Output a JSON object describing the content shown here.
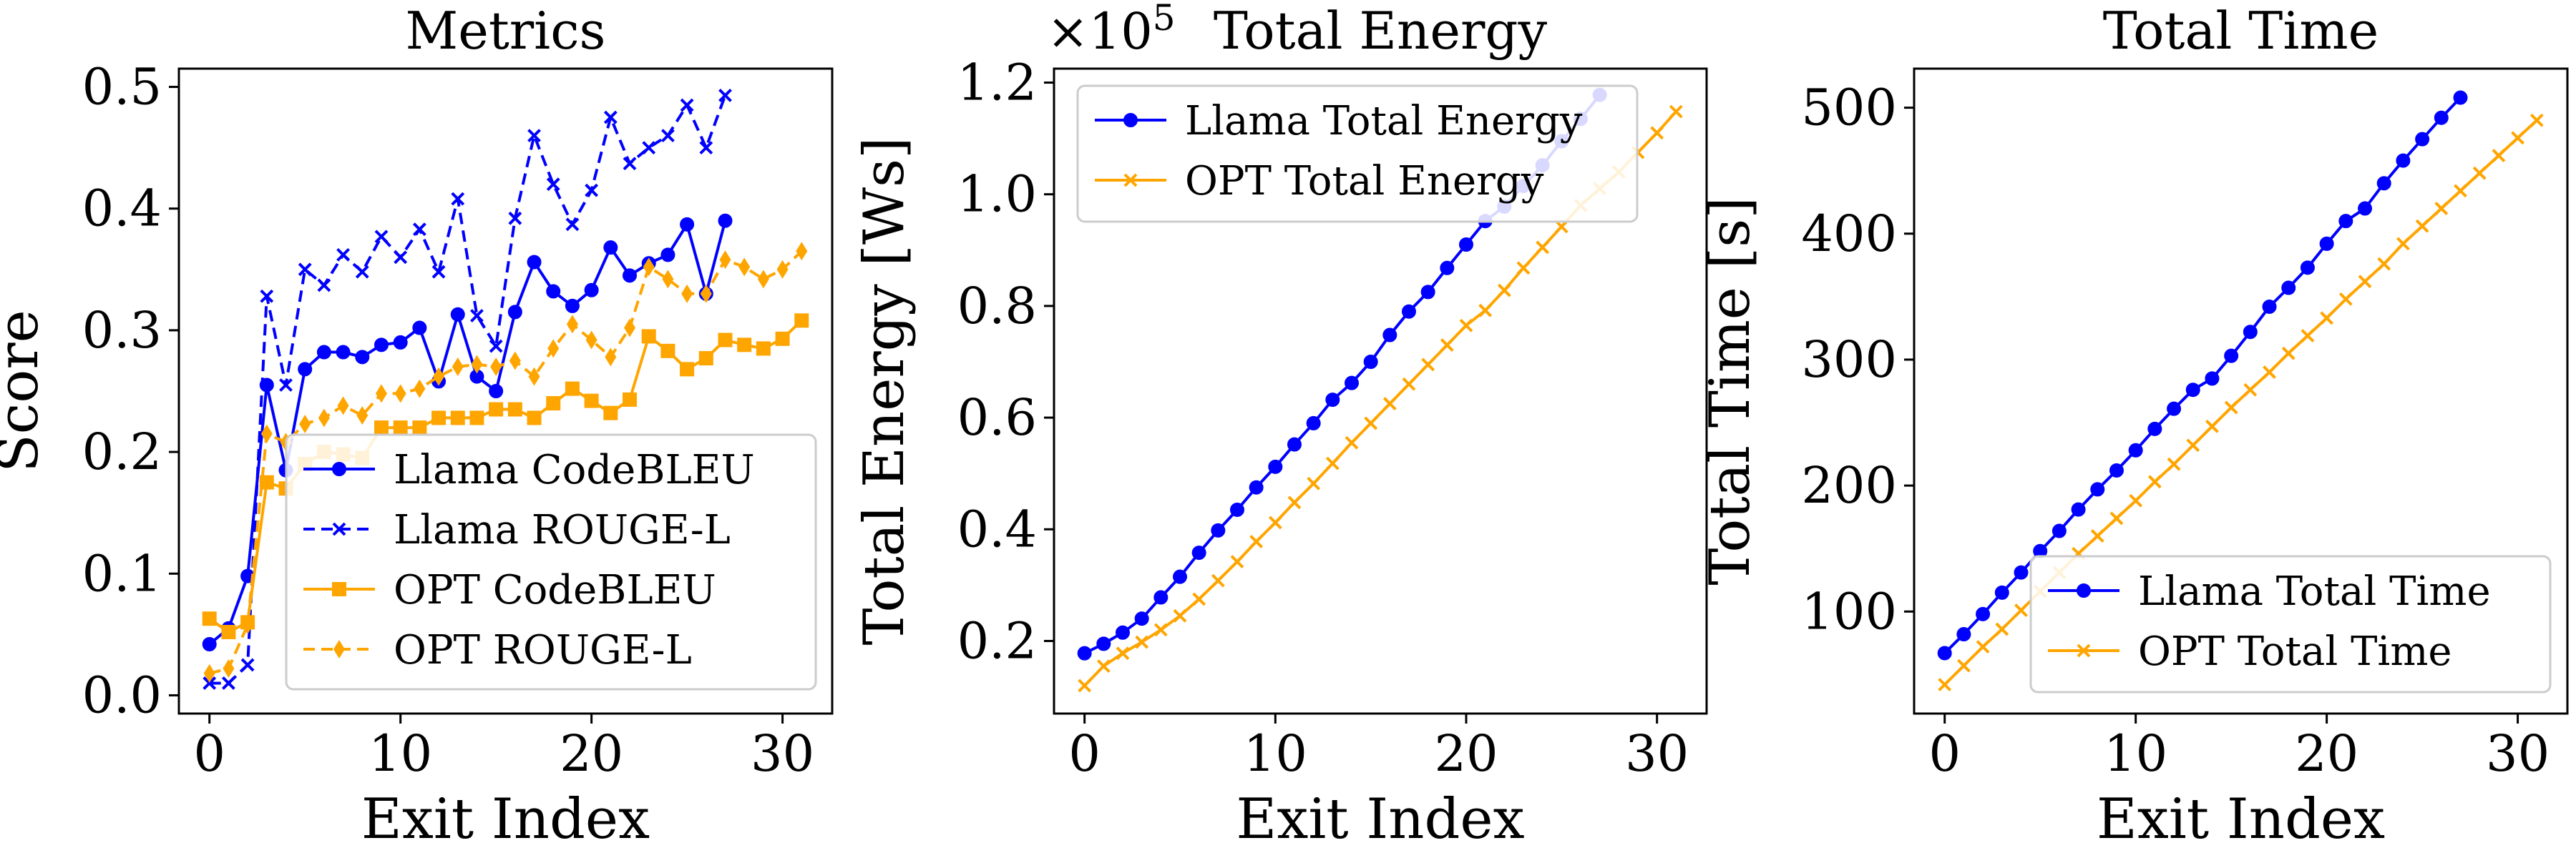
{
  "figure": {
    "background": "#ffffff"
  },
  "chart_data": [
    {
      "type": "line",
      "title": "Metrics",
      "xlabel": "Exit Index",
      "ylabel": "Score",
      "xlim": [
        -1.6,
        32.6
      ],
      "ylim": [
        -0.015,
        0.515
      ],
      "xticks": [
        0,
        10,
        20,
        30
      ],
      "xtick_labels": [
        "0",
        "10",
        "20",
        "30"
      ],
      "yticks": [
        0.0,
        0.1,
        0.2,
        0.3,
        0.4,
        0.5
      ],
      "ytick_labels": [
        "0.0",
        "0.1",
        "0.2",
        "0.3",
        "0.4",
        "0.5"
      ],
      "grid": false,
      "legend_position": "lower-right",
      "series": [
        {
          "name": "Llama CodeBLEU",
          "color": "#0000ff",
          "linestyle": "solid",
          "marker": "circle",
          "x": [
            0,
            1,
            2,
            3,
            4,
            5,
            6,
            7,
            8,
            9,
            10,
            11,
            12,
            13,
            14,
            15,
            16,
            17,
            18,
            19,
            20,
            21,
            22,
            23,
            24,
            25,
            26,
            27
          ],
          "y": [
            0.042,
            0.055,
            0.098,
            0.255,
            0.185,
            0.268,
            0.282,
            0.282,
            0.278,
            0.288,
            0.29,
            0.302,
            0.258,
            0.313,
            0.262,
            0.25,
            0.315,
            0.356,
            0.332,
            0.32,
            0.333,
            0.368,
            0.345,
            0.355,
            0.362,
            0.387,
            0.33,
            0.39
          ]
        },
        {
          "name": "Llama ROUGE-L",
          "color": "#0000ff",
          "linestyle": "dashed",
          "marker": "x",
          "x": [
            0,
            1,
            2,
            3,
            4,
            5,
            6,
            7,
            8,
            9,
            10,
            11,
            12,
            13,
            14,
            15,
            16,
            17,
            18,
            19,
            20,
            21,
            22,
            23,
            24,
            25,
            26,
            27
          ],
          "y": [
            0.01,
            0.01,
            0.025,
            0.328,
            0.255,
            0.35,
            0.337,
            0.362,
            0.348,
            0.377,
            0.36,
            0.383,
            0.348,
            0.408,
            0.312,
            0.287,
            0.392,
            0.46,
            0.42,
            0.387,
            0.415,
            0.475,
            0.437,
            0.45,
            0.46,
            0.485,
            0.45,
            0.493
          ]
        },
        {
          "name": "OPT CodeBLEU",
          "color": "#ffa500",
          "linestyle": "solid",
          "marker": "square",
          "x": [
            0,
            1,
            2,
            3,
            4,
            5,
            6,
            7,
            8,
            9,
            10,
            11,
            12,
            13,
            14,
            15,
            16,
            17,
            18,
            19,
            20,
            21,
            22,
            23,
            24,
            25,
            26,
            27,
            28,
            29,
            30,
            31
          ],
          "y": [
            0.063,
            0.052,
            0.06,
            0.175,
            0.17,
            0.19,
            0.2,
            0.198,
            0.195,
            0.22,
            0.22,
            0.22,
            0.228,
            0.228,
            0.228,
            0.235,
            0.235,
            0.228,
            0.24,
            0.252,
            0.242,
            0.232,
            0.243,
            0.295,
            0.283,
            0.268,
            0.277,
            0.292,
            0.288,
            0.285,
            0.293,
            0.308
          ]
        },
        {
          "name": "OPT ROUGE-L",
          "color": "#ffa500",
          "linestyle": "dashed",
          "marker": "diamond",
          "x": [
            0,
            1,
            2,
            3,
            4,
            5,
            6,
            7,
            8,
            9,
            10,
            11,
            12,
            13,
            14,
            15,
            16,
            17,
            18,
            19,
            20,
            21,
            22,
            23,
            24,
            25,
            26,
            27,
            28,
            29,
            30,
            31
          ],
          "y": [
            0.018,
            0.022,
            0.058,
            0.215,
            0.208,
            0.223,
            0.228,
            0.238,
            0.23,
            0.248,
            0.248,
            0.252,
            0.262,
            0.27,
            0.272,
            0.27,
            0.275,
            0.262,
            0.285,
            0.305,
            0.292,
            0.278,
            0.302,
            0.352,
            0.342,
            0.33,
            0.33,
            0.358,
            0.352,
            0.342,
            0.35,
            0.365
          ]
        }
      ]
    },
    {
      "type": "line",
      "title": "Total Energy",
      "offset_label": "×10",
      "offset_exponent": "5",
      "xlabel": "Exit Index",
      "ylabel": "Total Energy [Ws]",
      "xlim": [
        -1.6,
        32.6
      ],
      "ylim": [
        0.07,
        1.225
      ],
      "xticks": [
        0,
        10,
        20,
        30
      ],
      "xtick_labels": [
        "0",
        "10",
        "20",
        "30"
      ],
      "yticks": [
        0.2,
        0.4,
        0.6,
        0.8,
        1.0,
        1.2
      ],
      "ytick_labels": [
        "0.2",
        "0.4",
        "0.6",
        "0.8",
        "1.0",
        "1.2"
      ],
      "grid": false,
      "legend_position": "upper-left",
      "series": [
        {
          "name": "Llama Total Energy",
          "color": "#0000ff",
          "linestyle": "solid",
          "marker": "circle",
          "x": [
            0,
            1,
            2,
            3,
            4,
            5,
            6,
            7,
            8,
            9,
            10,
            11,
            12,
            13,
            14,
            15,
            16,
            17,
            18,
            19,
            20,
            21,
            22,
            23,
            24,
            25,
            26,
            27
          ],
          "y": [
            0.178,
            0.195,
            0.215,
            0.24,
            0.278,
            0.315,
            0.358,
            0.398,
            0.435,
            0.475,
            0.512,
            0.552,
            0.59,
            0.632,
            0.662,
            0.7,
            0.748,
            0.79,
            0.825,
            0.868,
            0.91,
            0.952,
            0.978,
            1.015,
            1.052,
            1.095,
            1.135,
            1.178
          ]
        },
        {
          "name": "OPT Total Energy",
          "color": "#ffa500",
          "linestyle": "solid",
          "marker": "x",
          "x": [
            0,
            1,
            2,
            3,
            4,
            5,
            6,
            7,
            8,
            9,
            10,
            11,
            12,
            13,
            14,
            15,
            16,
            17,
            18,
            19,
            20,
            21,
            22,
            23,
            24,
            25,
            26,
            27,
            28,
            29,
            30,
            31
          ],
          "y": [
            0.12,
            0.155,
            0.178,
            0.198,
            0.22,
            0.245,
            0.275,
            0.308,
            0.342,
            0.378,
            0.412,
            0.448,
            0.482,
            0.518,
            0.555,
            0.59,
            0.625,
            0.66,
            0.695,
            0.73,
            0.765,
            0.792,
            0.828,
            0.868,
            0.905,
            0.942,
            0.98,
            1.01,
            1.04,
            1.075,
            1.11,
            1.148
          ]
        }
      ]
    },
    {
      "type": "line",
      "title": "Total Time",
      "xlabel": "Exit Index",
      "ylabel": "Total Time [s]",
      "xlim": [
        -1.6,
        32.6
      ],
      "ylim": [
        19,
        531
      ],
      "xticks": [
        0,
        10,
        20,
        30
      ],
      "xtick_labels": [
        "0",
        "10",
        "20",
        "30"
      ],
      "yticks": [
        100,
        200,
        300,
        400,
        500
      ],
      "ytick_labels": [
        "100",
        "200",
        "300",
        "400",
        "500"
      ],
      "grid": false,
      "legend_position": "lower-right",
      "series": [
        {
          "name": "Llama Total Time",
          "color": "#0000ff",
          "linestyle": "solid",
          "marker": "circle",
          "x": [
            0,
            1,
            2,
            3,
            4,
            5,
            6,
            7,
            8,
            9,
            10,
            11,
            12,
            13,
            14,
            15,
            16,
            17,
            18,
            19,
            20,
            21,
            22,
            23,
            24,
            25,
            26,
            27
          ],
          "y": [
            67,
            82,
            98,
            115,
            131,
            148,
            164,
            181,
            197,
            212,
            228,
            245,
            261,
            276,
            285,
            303,
            322,
            342,
            357,
            373,
            392,
            410,
            420,
            440,
            458,
            475,
            492,
            508
          ]
        },
        {
          "name": "OPT Total Time",
          "color": "#ffa500",
          "linestyle": "solid",
          "marker": "x",
          "x": [
            0,
            1,
            2,
            3,
            4,
            5,
            6,
            7,
            8,
            9,
            10,
            11,
            12,
            13,
            14,
            15,
            16,
            17,
            18,
            19,
            20,
            21,
            22,
            23,
            24,
            25,
            26,
            27,
            28,
            29,
            30,
            31
          ],
          "y": [
            42,
            57,
            72,
            86,
            101,
            116,
            131,
            146,
            160,
            174,
            188,
            203,
            217,
            232,
            247,
            262,
            276,
            290,
            305,
            319,
            333,
            348,
            362,
            376,
            392,
            406,
            420,
            434,
            448,
            462,
            476,
            490
          ]
        }
      ]
    }
  ]
}
